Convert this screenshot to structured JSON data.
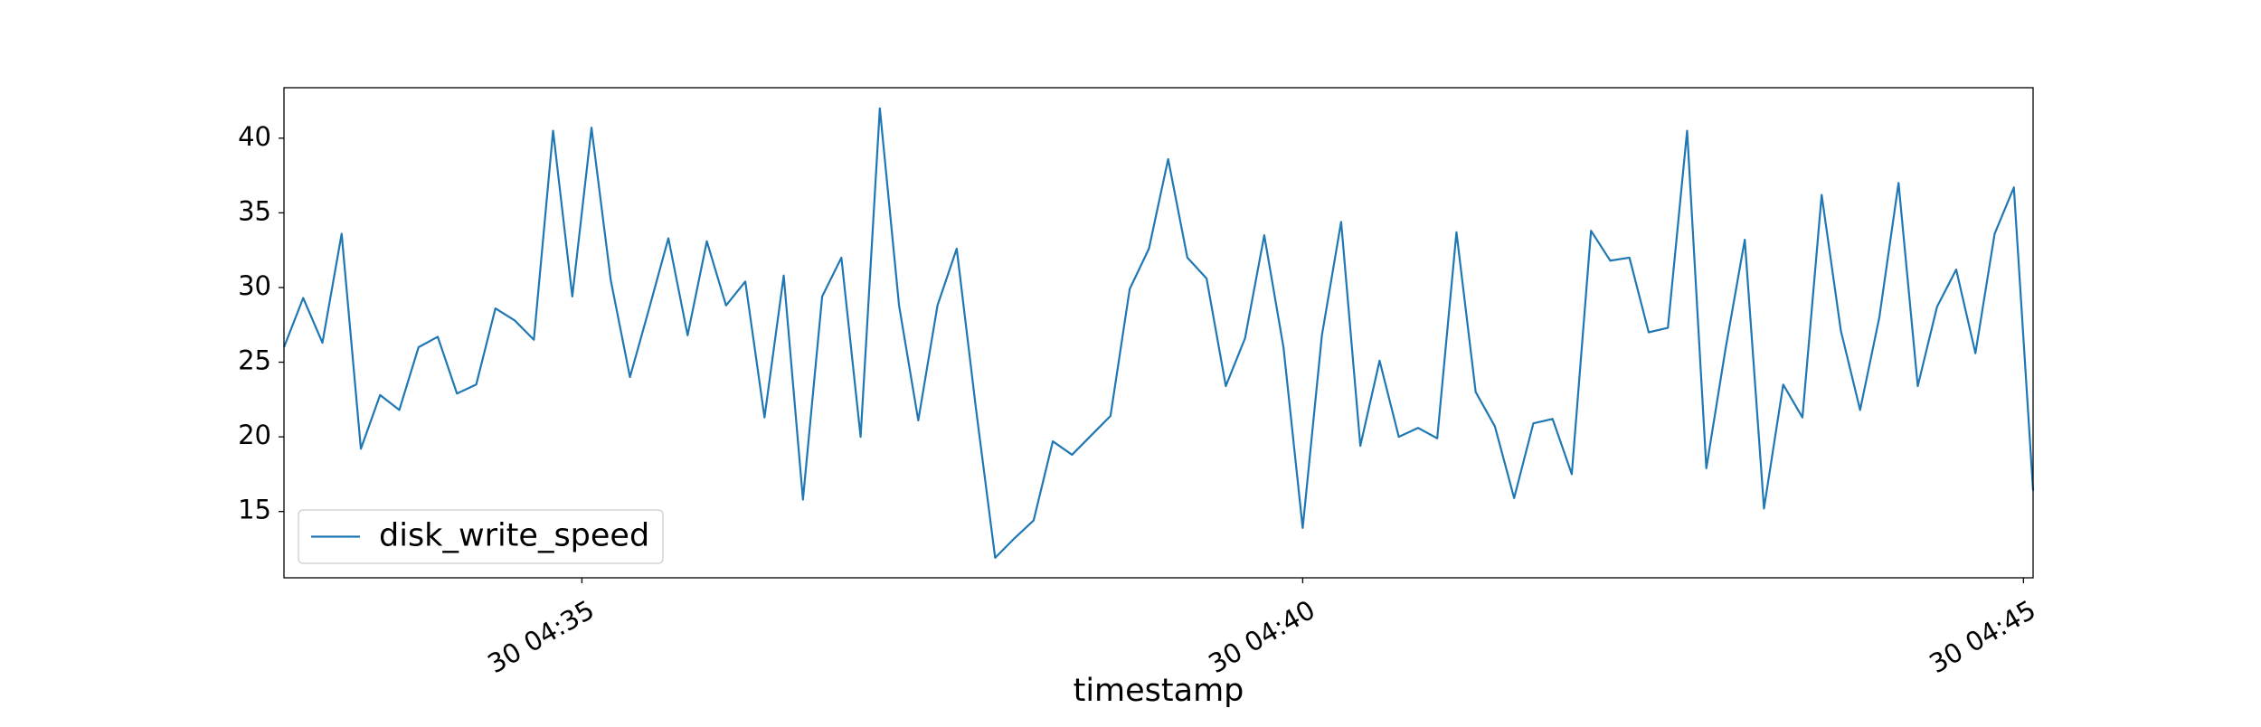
{
  "chart_data": {
    "type": "line",
    "xlabel": "timestamp",
    "x": [
      "30 04:32:56",
      "30 04:33:04",
      "30 04:33:12",
      "30 04:33:20",
      "30 04:33:28",
      "30 04:33:36",
      "30 04:33:44",
      "30 04:33:52",
      "30 04:34:00",
      "30 04:34:08",
      "30 04:34:16",
      "30 04:34:24",
      "30 04:34:32",
      "30 04:34:40",
      "30 04:34:48",
      "30 04:34:56",
      "30 04:35:04",
      "30 04:35:12",
      "30 04:35:20",
      "30 04:35:28",
      "30 04:35:36",
      "30 04:35:44",
      "30 04:35:52",
      "30 04:36:00",
      "30 04:36:08",
      "30 04:36:16",
      "30 04:36:24",
      "30 04:36:32",
      "30 04:36:40",
      "30 04:36:48",
      "30 04:36:56",
      "30 04:37:04",
      "30 04:37:12",
      "30 04:37:20",
      "30 04:37:28",
      "30 04:37:36",
      "30 04:37:44",
      "30 04:37:52",
      "30 04:38:00",
      "30 04:38:08",
      "30 04:38:16",
      "30 04:38:24",
      "30 04:38:32",
      "30 04:38:40",
      "30 04:38:48",
      "30 04:38:56",
      "30 04:39:04",
      "30 04:39:12",
      "30 04:39:20",
      "30 04:39:28",
      "30 04:39:36",
      "30 04:39:44",
      "30 04:39:52",
      "30 04:40:00",
      "30 04:40:08",
      "30 04:40:16",
      "30 04:40:24",
      "30 04:40:32",
      "30 04:40:40",
      "30 04:40:48",
      "30 04:40:56",
      "30 04:41:04",
      "30 04:41:12",
      "30 04:41:20",
      "30 04:41:28",
      "30 04:41:36",
      "30 04:41:44",
      "30 04:41:52",
      "30 04:42:00",
      "30 04:42:08",
      "30 04:42:16",
      "30 04:42:24",
      "30 04:42:32",
      "30 04:42:40",
      "30 04:42:48",
      "30 04:42:56",
      "30 04:43:04",
      "30 04:43:12",
      "30 04:43:20",
      "30 04:43:28",
      "30 04:43:36",
      "30 04:43:44",
      "30 04:43:52",
      "30 04:44:00",
      "30 04:44:08",
      "30 04:44:16",
      "30 04:44:24",
      "30 04:44:32",
      "30 04:44:40",
      "30 04:44:48",
      "30 04:44:56",
      "30 04:45:04"
    ],
    "series": [
      {
        "name": "disk_write_speed",
        "color": "#1f77b4",
        "values": [
          26.0,
          29.3,
          26.3,
          33.6,
          19.2,
          22.8,
          21.8,
          26.0,
          26.7,
          22.9,
          23.5,
          28.6,
          27.8,
          26.5,
          40.5,
          29.4,
          40.7,
          30.5,
          24.0,
          28.6,
          33.3,
          26.8,
          33.1,
          28.8,
          30.4,
          21.3,
          30.8,
          15.8,
          29.4,
          32.0,
          20.0,
          42.0,
          28.8,
          21.1,
          28.8,
          32.6,
          21.9,
          11.9,
          13.2,
          14.4,
          19.7,
          18.8,
          20.1,
          21.4,
          29.9,
          32.6,
          38.6,
          32.0,
          30.6,
          23.4,
          26.6,
          33.5,
          26.0,
          13.9,
          26.8,
          34.4,
          19.4,
          25.1,
          20.0,
          20.6,
          19.9,
          33.7,
          23.0,
          20.7,
          15.9,
          20.9,
          21.2,
          17.5,
          33.8,
          31.8,
          32.0,
          27.0,
          27.3,
          40.5,
          17.9,
          25.9,
          33.2,
          15.2,
          23.5,
          21.3,
          36.2,
          27.1,
          21.8,
          28.0,
          37.0,
          23.4,
          28.7,
          31.2,
          25.6,
          33.6,
          36.7,
          16.4
        ]
      }
    ],
    "xlim": [
      "30 04:32:56",
      "30 04:45:04"
    ],
    "xticks": [
      "30 04:35",
      "30 04:40",
      "30 04:45"
    ],
    "ylim": [
      10.56,
      43.38
    ],
    "yticks": [
      15,
      20,
      25,
      30,
      35,
      40
    ],
    "grid": false,
    "legend": "lower left"
  }
}
